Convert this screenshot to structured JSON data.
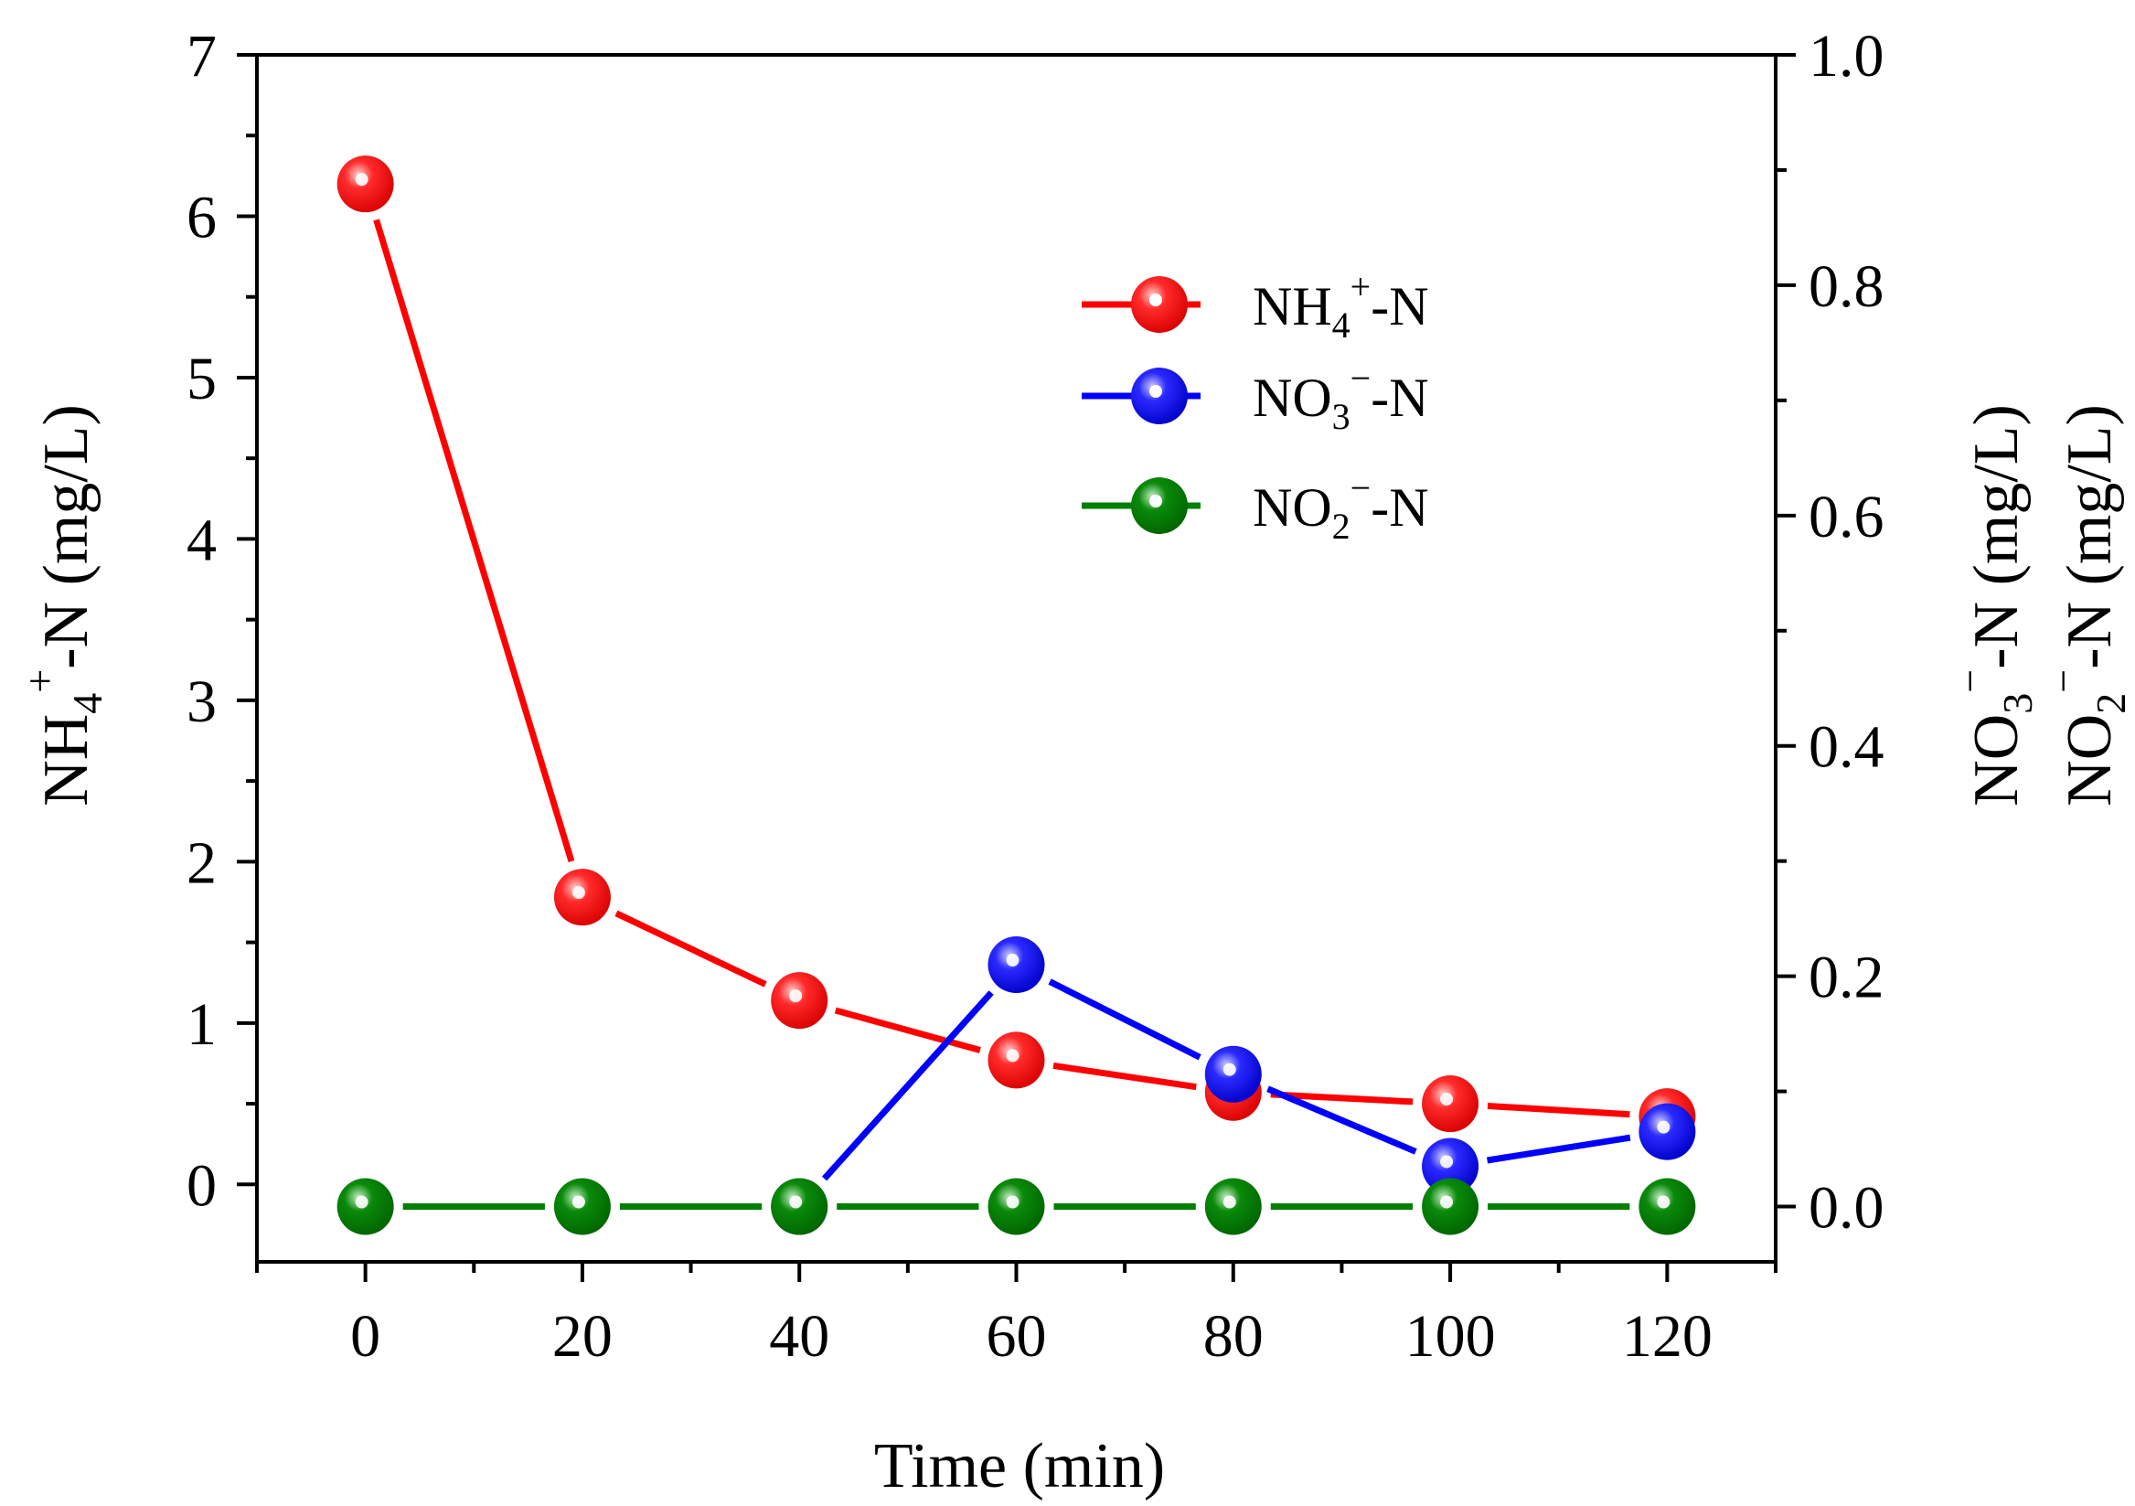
{
  "chart_data": {
    "type": "line",
    "xlabel": "Time (min)",
    "x": [
      0,
      20,
      40,
      60,
      80,
      100,
      120
    ],
    "xlim": [
      -10,
      130
    ],
    "xticks": [
      0,
      20,
      40,
      60,
      80,
      100,
      120
    ],
    "x_tick_labels": [
      "0",
      "20",
      "40",
      "60",
      "80",
      "100",
      "120"
    ],
    "y_left": {
      "label_main": "NH",
      "label_sub": "4",
      "label_sup": "+",
      "label_tail": "-N (mg/L)",
      "lim": [
        -0.48,
        7
      ],
      "ticks": [
        0,
        1,
        2,
        3,
        4,
        5,
        6,
        7
      ],
      "tick_labels": [
        "0",
        "1",
        "2",
        "3",
        "4",
        "5",
        "6",
        "7"
      ]
    },
    "y_right": {
      "label_1_main": "NO",
      "label_1_sub": "3",
      "label_1_sup": "−",
      "label_1_tail": "-N (mg/L)",
      "label_2_main": "NO",
      "label_2_sub": "2",
      "label_2_sup": "−",
      "label_2_tail": "-N (mg/L)",
      "lim": [
        -0.048,
        1.0
      ],
      "ticks": [
        0.0,
        0.2,
        0.4,
        0.6,
        0.8,
        1.0
      ],
      "tick_labels": [
        "0.0",
        "0.2",
        "0.4",
        "0.6",
        "0.8",
        "1.0"
      ]
    },
    "series": [
      {
        "name": "NH4+-N",
        "label_main": "NH",
        "label_sub": "4",
        "label_sup": "+",
        "label_tail": "-N",
        "axis": "left",
        "color": "#ff0000",
        "values": [
          6.2,
          1.78,
          1.14,
          0.77,
          0.57,
          0.5,
          0.42
        ]
      },
      {
        "name": "NO3−-N",
        "label_main": "NO",
        "label_sub": "3",
        "label_sup": "−",
        "label_tail": "-N",
        "axis": "right",
        "color": "#0000ff",
        "values": [
          null,
          null,
          0.0,
          0.21,
          0.115,
          0.035,
          0.065
        ]
      },
      {
        "name": "NO2−-N",
        "label_main": "NO",
        "label_sub": "2",
        "label_sup": "−",
        "label_tail": "-N",
        "axis": "right",
        "color": "#008000",
        "values": [
          0.0,
          0.0,
          0.0,
          0.0,
          0.0,
          0.0,
          0.0
        ]
      }
    ],
    "legend_position": "top-right"
  }
}
